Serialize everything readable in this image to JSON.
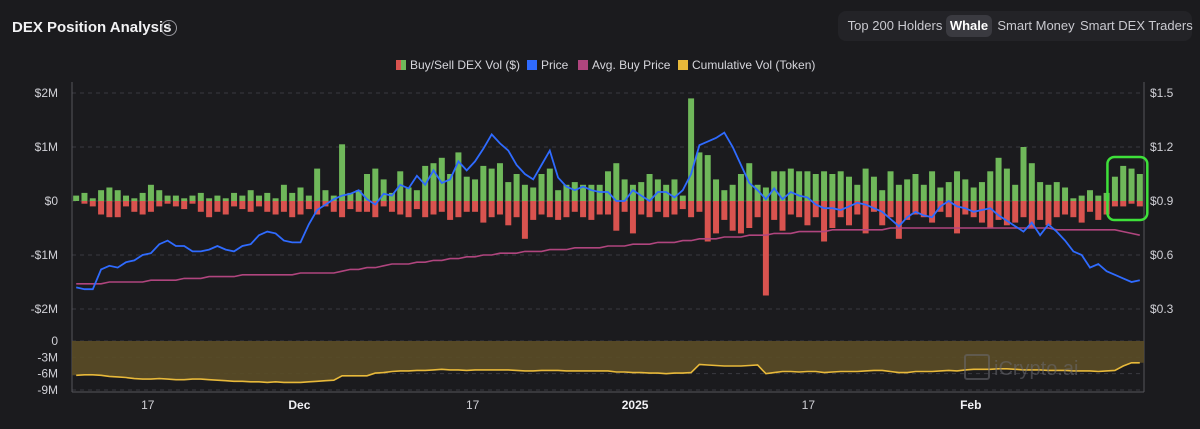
{
  "header": {
    "title": "DEX Position Analysis",
    "info_icon": "info-circle-icon",
    "tabs": [
      {
        "label": "Top 200 Holders",
        "active": false
      },
      {
        "label": "Whale",
        "active": true
      },
      {
        "label": "Smart Money",
        "active": false
      },
      {
        "label": "Smart DEX Traders",
        "active": false
      }
    ]
  },
  "watermark": "iCrypto.ai",
  "chart_data": {
    "type": "bar",
    "legend": [
      {
        "label": "Buy/Sell DEX Vol ($)",
        "color": "#6fb85a",
        "neg_color": "#d9534f"
      },
      {
        "label": "Price",
        "color": "#2f6bff"
      },
      {
        "label": "Avg. Buy Price",
        "color": "#b0457e"
      },
      {
        "label": "Cumulative Vol (Token)",
        "color": "#e8b93a"
      }
    ],
    "y_left": {
      "ticks": [
        "$2M",
        "$1M",
        "$0",
        "-$1M",
        "-$2M"
      ],
      "values": [
        2,
        1,
        0,
        -1,
        -2
      ],
      "range": [
        -2,
        2
      ],
      "unit": "$M"
    },
    "y_right": {
      "ticks": [
        "$1.5",
        "$1.2",
        "$0.9",
        "$0.6",
        "$0.3"
      ],
      "values": [
        1.5,
        1.2,
        0.9,
        0.6,
        0.3
      ],
      "range": [
        0.3,
        1.5
      ]
    },
    "y_lower": {
      "ticks": [
        "0",
        "-3M",
        "-6M",
        "-9M"
      ],
      "values": [
        0,
        -3,
        -6,
        -9
      ],
      "range": [
        -9,
        0
      ],
      "unit": "M tokens"
    },
    "x_ticks": [
      {
        "label": "17",
        "bold": false,
        "day": 7
      },
      {
        "label": "Dec",
        "bold": true,
        "day": 21
      },
      {
        "label": "17",
        "bold": false,
        "day": 37
      },
      {
        "label": "2025",
        "bold": true,
        "day": 52
      },
      {
        "label": "17",
        "bold": false,
        "day": 68
      },
      {
        "label": "Feb",
        "bold": true,
        "day": 83
      }
    ],
    "buy": [
      0.1,
      0.15,
      0.05,
      0.2,
      0.25,
      0.2,
      0.1,
      0.05,
      0.15,
      0.3,
      0.2,
      0.1,
      0.1,
      0.05,
      0.1,
      0.15,
      0.05,
      0.1,
      0.05,
      0.15,
      0.1,
      0.2,
      0.1,
      0.15,
      0.05,
      0.3,
      0.15,
      0.25,
      0.1,
      0.6,
      0.2,
      0.1,
      1.05,
      0.15,
      0.2,
      0.5,
      0.6,
      0.4,
      0.15,
      0.55,
      0.25,
      0.2,
      0.65,
      0.7,
      0.8,
      0.5,
      0.9,
      0.45,
      0.4,
      0.65,
      0.6,
      0.7,
      0.35,
      0.5,
      0.3,
      0.25,
      0.5,
      0.6,
      0.2,
      0.3,
      0.35,
      0.3,
      0.3,
      0.3,
      0.55,
      0.7,
      0.4,
      0.3,
      0.35,
      0.5,
      0.4,
      0.3,
      0.4,
      0.1,
      1.9,
      0.9,
      0.85,
      0.4,
      0.2,
      0.3,
      0.5,
      0.7,
      0.3,
      0.25,
      0.55,
      0.55,
      0.6,
      0.55,
      0.55,
      0.5,
      0.55,
      0.5,
      0.55,
      0.45,
      0.3,
      0.6,
      0.45,
      0.2,
      0.55,
      0.3,
      0.4,
      0.5,
      0.3,
      0.55,
      0.25,
      0.35,
      0.55,
      0.4,
      0.25,
      0.35,
      0.55,
      0.8,
      0.6,
      0.3,
      1.0,
      0.7,
      0.35,
      0.3,
      0.35,
      0.25,
      0.05,
      0.1,
      0.2,
      0.1,
      0.15,
      0.45,
      0.65,
      0.6,
      0.5
    ],
    "sell": [
      0.0,
      0.05,
      0.1,
      0.25,
      0.3,
      0.3,
      0.1,
      0.2,
      0.25,
      0.2,
      0.1,
      0.05,
      0.1,
      0.15,
      0.05,
      0.2,
      0.3,
      0.2,
      0.25,
      0.1,
      0.15,
      0.2,
      0.1,
      0.2,
      0.25,
      0.2,
      0.3,
      0.25,
      0.15,
      0.25,
      0.1,
      0.2,
      0.3,
      0.15,
      0.2,
      0.2,
      0.3,
      0.1,
      0.2,
      0.25,
      0.3,
      0.15,
      0.3,
      0.25,
      0.2,
      0.35,
      0.3,
      0.2,
      0.2,
      0.4,
      0.3,
      0.25,
      0.45,
      0.3,
      0.7,
      0.35,
      0.25,
      0.3,
      0.35,
      0.3,
      0.2,
      0.3,
      0.35,
      0.25,
      0.25,
      0.55,
      0.2,
      0.6,
      0.25,
      0.3,
      0.2,
      0.3,
      0.25,
      0.15,
      0.3,
      0.2,
      0.75,
      0.6,
      0.35,
      0.55,
      0.6,
      0.5,
      0.3,
      1.75,
      0.35,
      0.55,
      0.25,
      0.3,
      0.45,
      0.3,
      0.75,
      0.5,
      0.3,
      0.45,
      0.25,
      0.6,
      0.2,
      0.45,
      0.3,
      0.7,
      0.35,
      0.25,
      0.3,
      0.4,
      0.2,
      0.3,
      0.6,
      0.25,
      0.3,
      0.4,
      0.5,
      0.35,
      0.45,
      0.4,
      0.3,
      0.5,
      0.35,
      0.45,
      0.3,
      0.25,
      0.3,
      0.4,
      0.2,
      0.35,
      0.25,
      0.1,
      0.1,
      0.05,
      0.1
    ],
    "price": [
      0.42,
      0.41,
      0.41,
      0.52,
      0.54,
      0.53,
      0.56,
      0.57,
      0.6,
      0.61,
      0.66,
      0.68,
      0.65,
      0.65,
      0.62,
      0.62,
      0.63,
      0.65,
      0.63,
      0.62,
      0.65,
      0.66,
      0.71,
      0.73,
      0.72,
      0.68,
      0.67,
      0.67,
      0.77,
      0.85,
      0.88,
      0.91,
      0.93,
      0.94,
      0.96,
      0.91,
      0.88,
      0.94,
      0.93,
      0.99,
      0.97,
      1.04,
      0.99,
      1.07,
      1.0,
      1.02,
      1.12,
      1.07,
      1.12,
      1.19,
      1.27,
      1.22,
      1.18,
      1.1,
      1.05,
      1.02,
      1.1,
      1.18,
      1.03,
      0.98,
      0.96,
      0.98,
      0.96,
      0.95,
      0.95,
      0.9,
      0.9,
      0.96,
      0.93,
      0.9,
      0.95,
      0.95,
      0.92,
      0.96,
      1.05,
      1.21,
      1.23,
      1.25,
      1.28,
      1.2,
      1.1,
      1.0,
      0.96,
      0.91,
      0.97,
      0.91,
      0.95,
      0.93,
      0.92,
      0.88,
      0.86,
      0.86,
      0.85,
      0.87,
      0.89,
      0.88,
      0.86,
      0.84,
      0.8,
      0.76,
      0.81,
      0.84,
      0.82,
      0.81,
      0.87,
      0.9,
      0.87,
      0.86,
      0.84,
      0.85,
      0.86,
      0.82,
      0.79,
      0.76,
      0.73,
      0.78,
      0.71,
      0.77,
      0.73,
      0.68,
      0.62,
      0.6,
      0.53,
      0.55,
      0.51,
      0.49,
      0.47,
      0.45,
      0.46
    ],
    "avg_buy_price": [
      0.44,
      0.44,
      0.44,
      0.44,
      0.45,
      0.45,
      0.45,
      0.45,
      0.45,
      0.46,
      0.46,
      0.46,
      0.46,
      0.47,
      0.47,
      0.47,
      0.48,
      0.48,
      0.48,
      0.48,
      0.49,
      0.49,
      0.49,
      0.49,
      0.49,
      0.49,
      0.49,
      0.5,
      0.5,
      0.5,
      0.5,
      0.5,
      0.51,
      0.52,
      0.52,
      0.53,
      0.53,
      0.54,
      0.55,
      0.55,
      0.55,
      0.56,
      0.56,
      0.57,
      0.57,
      0.58,
      0.58,
      0.59,
      0.59,
      0.6,
      0.6,
      0.61,
      0.61,
      0.61,
      0.62,
      0.62,
      0.62,
      0.63,
      0.63,
      0.63,
      0.64,
      0.64,
      0.64,
      0.64,
      0.65,
      0.65,
      0.65,
      0.66,
      0.66,
      0.66,
      0.67,
      0.67,
      0.67,
      0.68,
      0.68,
      0.69,
      0.69,
      0.69,
      0.7,
      0.7,
      0.7,
      0.71,
      0.71,
      0.71,
      0.72,
      0.72,
      0.72,
      0.73,
      0.73,
      0.73,
      0.73,
      0.74,
      0.74,
      0.74,
      0.74,
      0.74,
      0.74,
      0.74,
      0.75,
      0.75,
      0.75,
      0.75,
      0.75,
      0.75,
      0.75,
      0.75,
      0.75,
      0.75,
      0.75,
      0.75,
      0.75,
      0.75,
      0.75,
      0.75,
      0.75,
      0.75,
      0.75,
      0.75,
      0.74,
      0.74,
      0.74,
      0.74,
      0.74,
      0.74,
      0.74,
      0.74,
      0.73,
      0.72,
      0.71
    ],
    "cumulative_vol": [
      -6.3,
      -6.2,
      -6.2,
      -6.3,
      -6.5,
      -6.6,
      -6.7,
      -6.9,
      -7.0,
      -7.0,
      -6.9,
      -7.0,
      -7.1,
      -7.1,
      -7.0,
      -7.0,
      -7.1,
      -7.2,
      -7.3,
      -7.4,
      -7.4,
      -7.5,
      -7.5,
      -7.6,
      -7.5,
      -7.6,
      -7.6,
      -7.6,
      -7.5,
      -7.4,
      -7.3,
      -7.2,
      -6.4,
      -6.4,
      -6.4,
      -6.4,
      -5.9,
      -5.8,
      -5.6,
      -5.5,
      -5.5,
      -5.4,
      -5.4,
      -5.3,
      -5.2,
      -5.3,
      -5.3,
      -5.4,
      -5.3,
      -5.3,
      -5.3,
      -5.3,
      -5.3,
      -5.4,
      -5.5,
      -5.5,
      -5.4,
      -5.4,
      -5.4,
      -5.5,
      -5.5,
      -5.5,
      -5.5,
      -5.5,
      -5.5,
      -5.7,
      -5.7,
      -5.8,
      -5.8,
      -5.9,
      -5.9,
      -6.0,
      -5.9,
      -5.9,
      -5.8,
      -4.3,
      -4.4,
      -4.5,
      -4.6,
      -4.6,
      -4.6,
      -4.5,
      -4.4,
      -6.0,
      -5.8,
      -5.6,
      -5.6,
      -5.7,
      -5.6,
      -5.6,
      -5.8,
      -5.7,
      -5.6,
      -5.6,
      -5.6,
      -5.5,
      -5.4,
      -5.4,
      -5.6,
      -5.8,
      -5.8,
      -5.6,
      -5.6,
      -5.6,
      -5.5,
      -5.4,
      -5.5,
      -5.3,
      -5.2,
      -5.2,
      -5.2,
      -5.1,
      -5.1,
      -5.2,
      -5.3,
      -5.3,
      -5.3,
      -5.4,
      -5.4,
      -5.4,
      -5.5,
      -5.5,
      -5.5,
      -5.6,
      -5.5,
      -5.4,
      -4.6,
      -4.0,
      -4.0
    ],
    "highlight": {
      "from_index": 125,
      "to_index": 128,
      "color": "#3ee03a"
    }
  }
}
